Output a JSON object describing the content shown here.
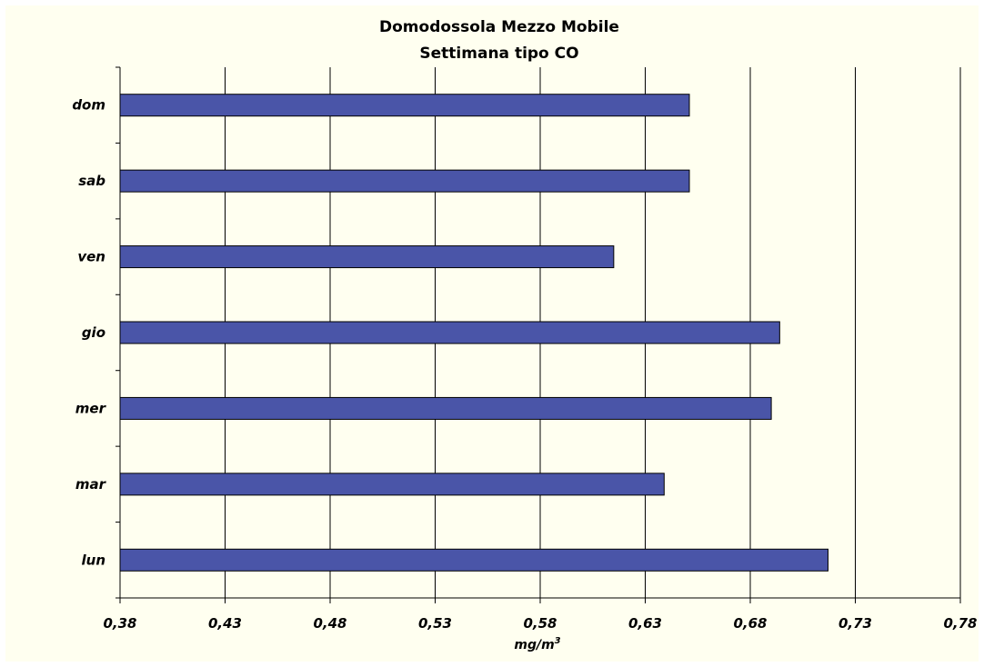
{
  "chart_data": {
    "type": "bar",
    "orientation": "horizontal",
    "title": "Domodossola Mezzo Mobile",
    "subtitle": "Settimana tipo CO",
    "xlabel": "mg/m",
    "xlabel_superscript": "3",
    "ylabel": "",
    "categories": [
      "dom",
      "sab",
      "ven",
      "gio",
      "mer",
      "mar",
      "lun"
    ],
    "values": [
      0.651,
      0.651,
      0.615,
      0.694,
      0.69,
      0.639,
      0.717
    ],
    "xlim": [
      0.38,
      0.78
    ],
    "xticks": [
      "0,38",
      "0,43",
      "0,48",
      "0,53",
      "0,58",
      "0,63",
      "0,68",
      "0,73",
      "0,78"
    ],
    "grid": "vertical",
    "legend": "none",
    "colors": {
      "bar": "#4a55a8",
      "bar_edge": "#000000",
      "background": "#fffff0",
      "gridline": "#000000"
    }
  }
}
